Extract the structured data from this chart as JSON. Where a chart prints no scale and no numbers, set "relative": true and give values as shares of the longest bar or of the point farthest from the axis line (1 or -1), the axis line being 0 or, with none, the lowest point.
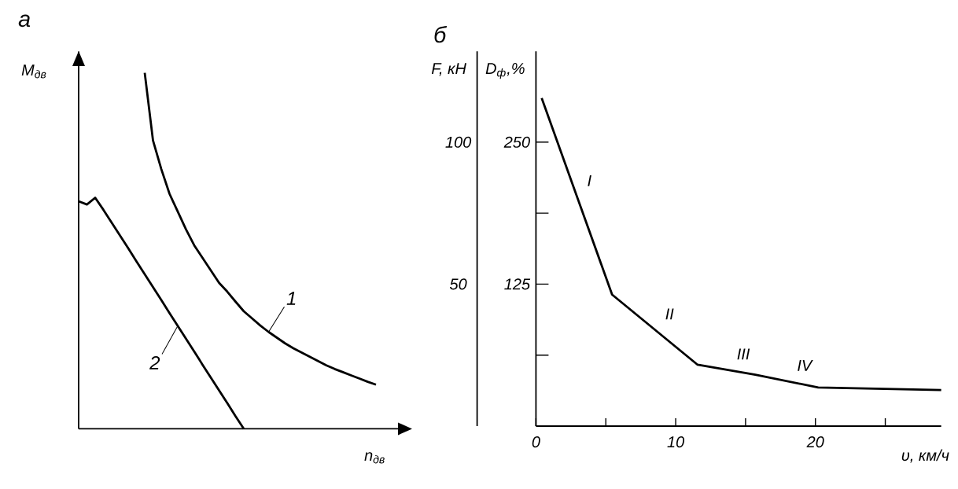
{
  "chart_data": [
    {
      "type": "line",
      "title": "а",
      "relative": true,
      "xlabel": "n$_{дв}$",
      "ylabel": "M$_{дв}$",
      "categories": [
        null,
        null,
        null,
        null,
        null,
        null,
        null,
        null,
        null,
        null,
        null,
        null,
        null,
        null,
        null,
        null,
        null,
        null,
        null,
        null,
        null,
        null,
        null,
        null,
        null,
        null,
        null,
        null,
        null,
        null,
        null,
        null,
        null,
        null,
        null,
        null,
        null,
        null,
        null,
        null,
        null
      ],
      "series": [
        {
          "name": "1",
          "color": "#000000",
          "values": [
            null,
            null,
            null,
            null,
            null,
            null,
            null,
            null,
            1.0,
            0.81,
            0.73,
            0.66,
            0.61,
            0.56,
            0.515,
            0.48,
            0.445,
            0.41,
            0.385,
            0.357,
            0.33,
            0.31,
            0.29,
            0.272,
            0.256,
            0.24,
            0.226,
            0.214,
            0.202,
            0.19,
            0.178,
            0.168,
            0.159,
            0.15,
            0.141,
            0.132,
            0.124,
            null,
            null,
            null,
            null
          ]
        },
        {
          "name": "2",
          "color": "#000000",
          "values": [
            0.639,
            0.63,
            0.649,
            0.615,
            0.579,
            0.543,
            0.507,
            0.47,
            0.434,
            0.398,
            0.362,
            0.325,
            0.289,
            0.253,
            0.217,
            0.18,
            0.144,
            0.108,
            0.072,
            0.035,
            0.0,
            null,
            null,
            null,
            null,
            null,
            null,
            null,
            null,
            null,
            null,
            null,
            null,
            null,
            null,
            null,
            null,
            null,
            null,
            null,
            null
          ]
        }
      ]
    },
    {
      "type": "line",
      "title": "б",
      "xlabel": "υ, км/ч",
      "ylabel": "F, кН",
      "y2label": "D$_{ф}$,%",
      "xlim": [
        0,
        29
      ],
      "ylim": [
        0,
        132
      ],
      "y2lim": [
        0,
        330
      ],
      "xticks": [
        0,
        {
          "value": 5,
          "label": null
        },
        10,
        {
          "value": 15,
          "label": null
        },
        20,
        {
          "value": 25,
          "label": null
        }
      ],
      "yticks": [
        50,
        100
      ],
      "y2ticks": [
        {
          "value": 62.5,
          "label": null
        },
        125,
        {
          "value": 187.5,
          "label": null
        },
        250
      ],
      "series": [
        {
          "color": "#000000",
          "x": [
            0.41,
            5.45,
            11.57,
            15.7,
            20.2,
            29.0
          ],
          "values": [
            115.5,
            46.3,
            21.6,
            18.1,
            13.6,
            12.7
          ]
        }
      ],
      "annotations": [
        "I",
        "II",
        "III",
        "IV"
      ]
    }
  ]
}
